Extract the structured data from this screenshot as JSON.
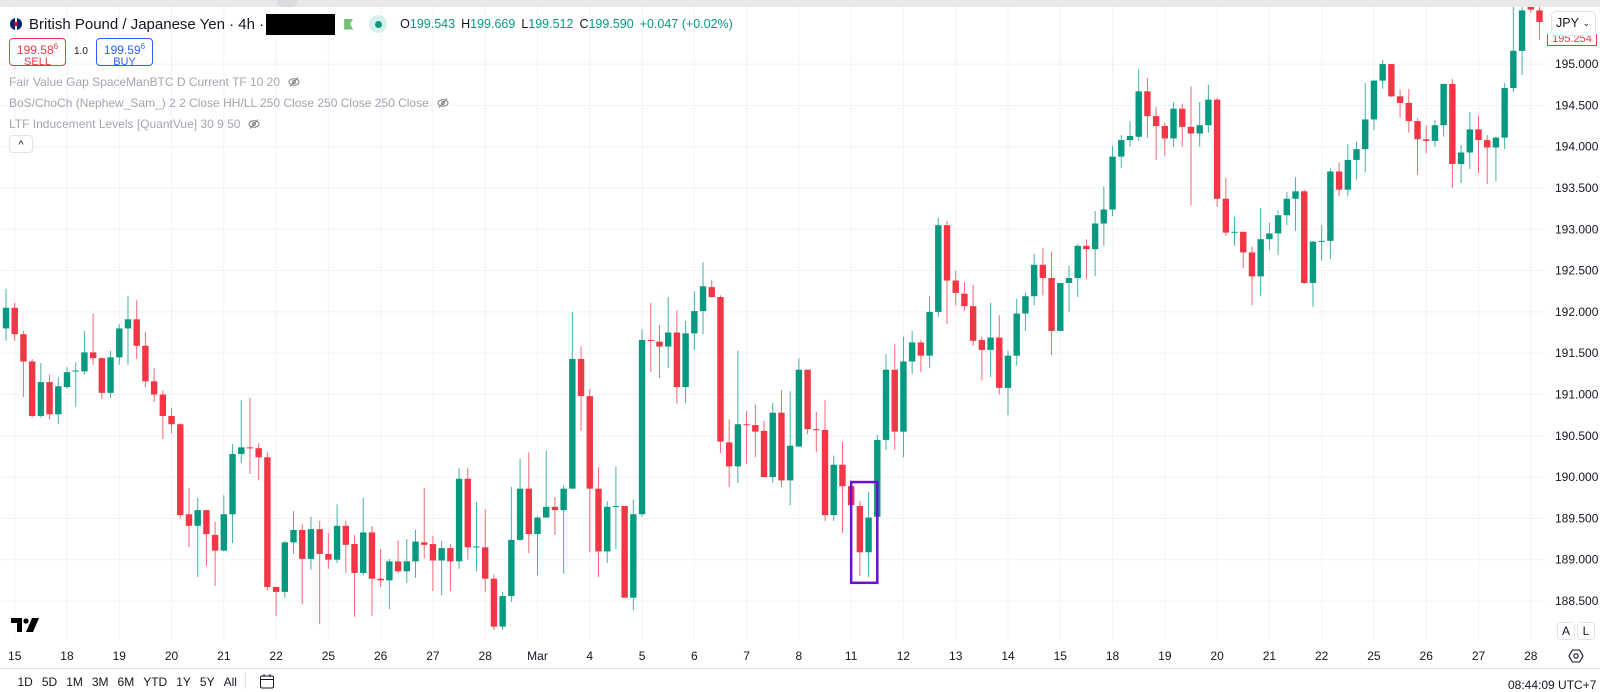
{
  "header": {
    "symbol_title": "British Pound / Japanese Yen · 4h ·",
    "ohlc": [
      {
        "label": "O",
        "value": "199.543"
      },
      {
        "label": "H",
        "value": "199.669"
      },
      {
        "label": "L",
        "value": "199.512"
      },
      {
        "label": "C",
        "value": "199.590"
      }
    ],
    "change": "+0.047 (+0.02%)",
    "sell": {
      "price": "199.58",
      "price_sup": "6",
      "label": "SELL"
    },
    "buy": {
      "price": "199.59",
      "price_sup": "6",
      "label": "BUY"
    },
    "quantity": "1.0"
  },
  "indicators": [
    {
      "label": "Fair Value Gap SpaceManBTC D Current TF 10 20",
      "icon": "eye-off-icon"
    },
    {
      "label": "BoS/ChoCh (Nephew_Sam_) 2 2 Close HH/LL 250 Close 250 Close 250 Close",
      "icon": "eye-off-icon"
    },
    {
      "label": "LTF Inducement Levels [QuantVue] 30 9 50",
      "icon": "eye-off-icon"
    }
  ],
  "collapse_label": "^",
  "currency_button": "JPY",
  "last_price_label": "195.254",
  "bottom_toolbar": {
    "ranges": [
      "1D",
      "5D",
      "1M",
      "3M",
      "6M",
      "YTD",
      "1Y",
      "5Y",
      "All"
    ],
    "clock": "08:44:09 UTC+7",
    "auto_label": "A",
    "log_label": "L"
  },
  "colors": {
    "up": "#089981",
    "down": "#f23645",
    "grid": "#f0f3fa",
    "highlight_box": "#6a0dd6",
    "buy": "#2962ff"
  },
  "chart_data": {
    "type": "candlestick",
    "timeframe": "4h",
    "ylim": [
      188.2,
      195.7
    ],
    "grid": true,
    "y_ticks": [
      "195.000",
      "194.500",
      "194.000",
      "193.500",
      "193.000",
      "192.500",
      "192.000",
      "191.500",
      "191.000",
      "190.500",
      "190.000",
      "189.500",
      "189.000",
      "188.500"
    ],
    "x_ticks": [
      "15",
      "18",
      "19",
      "20",
      "21",
      "22",
      "25",
      "26",
      "27",
      "28",
      "Mar",
      "4",
      "5",
      "6",
      "7",
      "8",
      "11",
      "12",
      "13",
      "14",
      "15",
      "18",
      "19",
      "20",
      "21",
      "22",
      "25",
      "26",
      "27",
      "28"
    ],
    "candle_fields": [
      "open",
      "high",
      "low",
      "close"
    ],
    "candles": [
      [
        191.8,
        192.28,
        191.65,
        192.05
      ],
      [
        192.05,
        192.11,
        191.65,
        191.73
      ],
      [
        191.73,
        191.77,
        190.97,
        191.4
      ],
      [
        191.4,
        191.43,
        190.72,
        190.74
      ],
      [
        190.74,
        191.38,
        190.72,
        191.15
      ],
      [
        191.15,
        191.24,
        190.7,
        190.76
      ],
      [
        190.76,
        191.21,
        190.64,
        191.1
      ],
      [
        191.09,
        191.33,
        191.07,
        191.27
      ],
      [
        191.28,
        191.39,
        190.85,
        191.29
      ],
      [
        191.28,
        191.77,
        191.24,
        191.51
      ],
      [
        191.51,
        191.98,
        191.36,
        191.44
      ],
      [
        191.44,
        191.45,
        190.95,
        191.02
      ],
      [
        191.02,
        191.53,
        190.96,
        191.45
      ],
      [
        191.45,
        191.85,
        191.36,
        191.8
      ],
      [
        191.8,
        192.19,
        191.36,
        191.91
      ],
      [
        191.91,
        192.14,
        191.43,
        191.59
      ],
      [
        191.59,
        191.76,
        191.09,
        191.16
      ],
      [
        191.16,
        191.32,
        190.91,
        191.0
      ],
      [
        191.0,
        191.05,
        190.46,
        190.74
      ],
      [
        190.74,
        190.84,
        190.53,
        190.64
      ],
      [
        190.64,
        190.65,
        189.5,
        189.54
      ],
      [
        189.55,
        189.87,
        189.15,
        189.41
      ],
      [
        189.41,
        189.75,
        188.79,
        189.6
      ],
      [
        189.6,
        189.6,
        188.92,
        189.31
      ],
      [
        189.3,
        189.46,
        188.68,
        189.11
      ],
      [
        189.11,
        189.78,
        189.1,
        189.55
      ],
      [
        189.55,
        190.4,
        189.2,
        190.28
      ],
      [
        190.28,
        190.93,
        190.17,
        190.36
      ],
      [
        190.36,
        190.96,
        190.04,
        190.35
      ],
      [
        190.35,
        190.41,
        189.96,
        190.24
      ],
      [
        190.24,
        190.3,
        188.63,
        188.67
      ],
      [
        188.67,
        188.67,
        188.32,
        188.61
      ],
      [
        188.61,
        189.23,
        188.54,
        189.21
      ],
      [
        189.21,
        189.59,
        189.07,
        189.36
      ],
      [
        189.36,
        189.43,
        188.46,
        189.01
      ],
      [
        189.01,
        189.52,
        188.88,
        189.37
      ],
      [
        189.37,
        189.47,
        188.22,
        189.07
      ],
      [
        189.07,
        189.32,
        188.89,
        189.0
      ],
      [
        189.0,
        189.67,
        188.96,
        189.41
      ],
      [
        189.41,
        189.47,
        188.84,
        189.18
      ],
      [
        189.19,
        189.3,
        188.31,
        188.84
      ],
      [
        188.84,
        189.75,
        188.81,
        189.33
      ],
      [
        189.33,
        189.41,
        188.32,
        188.77
      ],
      [
        188.77,
        189.13,
        188.67,
        188.75
      ],
      [
        188.75,
        189.01,
        188.4,
        188.98
      ],
      [
        188.98,
        189.23,
        188.84,
        188.86
      ],
      [
        188.86,
        189.25,
        188.72,
        188.98
      ],
      [
        188.98,
        189.36,
        188.78,
        189.22
      ],
      [
        189.21,
        189.87,
        189.02,
        189.18
      ],
      [
        189.19,
        189.29,
        188.62,
        188.99
      ],
      [
        188.99,
        189.23,
        188.57,
        189.14
      ],
      [
        189.14,
        189.19,
        188.62,
        188.98
      ],
      [
        188.98,
        190.11,
        188.89,
        189.98
      ],
      [
        189.98,
        190.11,
        189.0,
        189.15
      ],
      [
        189.15,
        189.7,
        188.86,
        189.16
      ],
      [
        189.15,
        189.61,
        188.61,
        188.77
      ],
      [
        188.77,
        188.82,
        188.15,
        188.19
      ],
      [
        188.19,
        188.61,
        188.15,
        188.56
      ],
      [
        188.56,
        189.88,
        188.49,
        189.24
      ],
      [
        189.24,
        190.22,
        189.23,
        189.86
      ],
      [
        189.86,
        190.3,
        189.08,
        189.31
      ],
      [
        189.31,
        189.52,
        188.81,
        189.51
      ],
      [
        189.51,
        190.32,
        189.51,
        189.64
      ],
      [
        189.64,
        189.76,
        189.3,
        189.6
      ],
      [
        189.6,
        189.9,
        188.83,
        189.86
      ],
      [
        189.86,
        192.0,
        189.86,
        191.43
      ],
      [
        191.43,
        191.58,
        190.56,
        190.98
      ],
      [
        190.98,
        191.07,
        189.09,
        189.86
      ],
      [
        189.86,
        190.12,
        188.79,
        189.1
      ],
      [
        189.1,
        189.71,
        188.96,
        189.64
      ],
      [
        189.64,
        190.13,
        189.13,
        189.65
      ],
      [
        189.65,
        189.65,
        188.54,
        188.54
      ],
      [
        188.54,
        189.73,
        188.39,
        189.55
      ],
      [
        189.55,
        191.79,
        189.52,
        191.66
      ],
      [
        191.66,
        192.11,
        191.27,
        191.65
      ],
      [
        191.64,
        191.84,
        191.2,
        191.58
      ],
      [
        191.58,
        192.18,
        191.32,
        191.75
      ],
      [
        191.75,
        192.02,
        190.89,
        191.09
      ],
      [
        191.09,
        191.89,
        190.9,
        191.74
      ],
      [
        191.74,
        192.25,
        191.54,
        192.01
      ],
      [
        192.01,
        192.6,
        191.73,
        192.31
      ],
      [
        192.3,
        192.39,
        192.17,
        192.18
      ],
      [
        192.18,
        192.2,
        190.29,
        190.43
      ],
      [
        190.42,
        190.7,
        189.88,
        190.13
      ],
      [
        190.13,
        191.53,
        189.93,
        190.64
      ],
      [
        190.64,
        190.8,
        190.16,
        190.63
      ],
      [
        190.63,
        190.88,
        190.24,
        190.55
      ],
      [
        190.56,
        190.68,
        190.0,
        190.0
      ],
      [
        190.0,
        190.9,
        189.93,
        190.78
      ],
      [
        190.78,
        191.05,
        189.88,
        189.96
      ],
      [
        189.96,
        191.04,
        189.66,
        190.38
      ],
      [
        190.37,
        191.44,
        190.37,
        191.3
      ],
      [
        191.3,
        191.3,
        190.52,
        190.58
      ],
      [
        190.58,
        190.79,
        190.3,
        190.57
      ],
      [
        190.57,
        190.93,
        189.47,
        189.54
      ],
      [
        189.54,
        190.26,
        189.47,
        190.15
      ],
      [
        190.15,
        190.43,
        189.32,
        189.89
      ],
      [
        189.89,
        189.96,
        189.66,
        189.66
      ],
      [
        189.65,
        189.71,
        188.8,
        189.09
      ],
      [
        189.09,
        189.82,
        188.79,
        189.51
      ],
      [
        189.52,
        190.51,
        189.52,
        190.45
      ],
      [
        190.45,
        191.49,
        190.33,
        191.3
      ],
      [
        191.3,
        191.61,
        190.33,
        190.55
      ],
      [
        190.55,
        191.7,
        190.24,
        191.4
      ],
      [
        191.4,
        191.77,
        191.25,
        191.63
      ],
      [
        191.63,
        191.66,
        191.27,
        191.47
      ],
      [
        191.47,
        192.19,
        191.32,
        192.0
      ],
      [
        192.0,
        193.14,
        191.94,
        193.05
      ],
      [
        193.05,
        193.1,
        191.85,
        192.38
      ],
      [
        192.38,
        192.5,
        192.08,
        192.23
      ],
      [
        192.22,
        192.36,
        192.01,
        192.07
      ],
      [
        192.07,
        192.33,
        191.59,
        191.65
      ],
      [
        191.66,
        191.7,
        191.17,
        191.54
      ],
      [
        191.54,
        192.11,
        191.21,
        191.69
      ],
      [
        191.69,
        191.96,
        191.0,
        191.08
      ],
      [
        191.08,
        191.53,
        190.75,
        191.47
      ],
      [
        191.47,
        192.16,
        191.35,
        191.98
      ],
      [
        191.98,
        192.23,
        191.77,
        192.19
      ],
      [
        192.19,
        192.7,
        192.08,
        192.57
      ],
      [
        192.57,
        192.77,
        192.2,
        192.41
      ],
      [
        192.41,
        192.73,
        191.48,
        191.77
      ],
      [
        191.77,
        192.35,
        191.77,
        192.35
      ],
      [
        192.35,
        192.56,
        192.0,
        192.41
      ],
      [
        192.41,
        192.82,
        192.18,
        192.8
      ],
      [
        192.8,
        192.88,
        192.39,
        192.76
      ],
      [
        192.76,
        193.22,
        192.43,
        193.07
      ],
      [
        193.07,
        193.52,
        192.8,
        193.24
      ],
      [
        193.24,
        194.01,
        193.16,
        193.88
      ],
      [
        193.88,
        194.14,
        193.74,
        194.08
      ],
      [
        194.08,
        194.31,
        194.0,
        194.13
      ],
      [
        194.12,
        194.94,
        194.07,
        194.67
      ],
      [
        194.67,
        194.83,
        194.11,
        194.37
      ],
      [
        194.37,
        194.48,
        193.84,
        194.25
      ],
      [
        194.25,
        194.29,
        193.89,
        194.1
      ],
      [
        194.1,
        194.54,
        194.0,
        194.46
      ],
      [
        194.46,
        194.52,
        194.0,
        194.24
      ],
      [
        194.24,
        194.73,
        193.29,
        194.16
      ],
      [
        194.16,
        194.54,
        194.0,
        194.26
      ],
      [
        194.26,
        194.75,
        194.17,
        194.57
      ],
      [
        194.57,
        194.59,
        193.27,
        193.37
      ],
      [
        193.37,
        193.62,
        192.92,
        192.96
      ],
      [
        192.96,
        193.15,
        192.8,
        192.97
      ],
      [
        192.97,
        192.97,
        192.53,
        192.72
      ],
      [
        192.72,
        192.79,
        192.08,
        192.43
      ],
      [
        192.43,
        193.26,
        192.19,
        192.88
      ],
      [
        192.88,
        193.08,
        192.75,
        192.95
      ],
      [
        192.95,
        193.23,
        192.69,
        193.17
      ],
      [
        193.17,
        193.45,
        193.05,
        193.37
      ],
      [
        193.37,
        193.63,
        192.98,
        193.46
      ],
      [
        193.46,
        193.48,
        192.34,
        192.35
      ],
      [
        192.35,
        192.86,
        192.06,
        192.85
      ],
      [
        192.85,
        193.05,
        192.62,
        192.86
      ],
      [
        192.86,
        193.74,
        192.64,
        193.7
      ],
      [
        193.7,
        193.81,
        193.4,
        193.48
      ],
      [
        193.48,
        194.03,
        193.4,
        193.84
      ],
      [
        193.84,
        194.06,
        193.6,
        193.97
      ],
      [
        193.97,
        194.77,
        193.69,
        194.33
      ],
      [
        194.33,
        194.81,
        194.2,
        194.8
      ],
      [
        194.8,
        195.05,
        194.7,
        195.0
      ],
      [
        195.0,
        195.0,
        194.6,
        194.61
      ],
      [
        194.61,
        194.69,
        194.35,
        194.53
      ],
      [
        194.53,
        194.7,
        194.17,
        194.31
      ],
      [
        194.31,
        194.34,
        193.66,
        194.09
      ],
      [
        194.09,
        194.26,
        193.92,
        194.07
      ],
      [
        194.07,
        194.32,
        194.0,
        194.26
      ],
      [
        194.26,
        194.76,
        194.12,
        194.76
      ],
      [
        194.76,
        194.82,
        193.5,
        193.79
      ],
      [
        193.79,
        194.02,
        193.56,
        193.93
      ],
      [
        193.93,
        194.42,
        193.73,
        194.21
      ],
      [
        194.21,
        194.38,
        193.68,
        194.08
      ],
      [
        194.08,
        194.14,
        193.55,
        193.99
      ],
      [
        193.99,
        194.12,
        193.58,
        194.11
      ],
      [
        194.11,
        194.77,
        193.97,
        194.71
      ],
      [
        194.71,
        195.75,
        194.66,
        195.16
      ],
      [
        195.16,
        195.75,
        194.87,
        195.65
      ],
      [
        195.9,
        196.0,
        195.62,
        195.66
      ],
      [
        195.65,
        195.7,
        195.29,
        195.51
      ]
    ],
    "annotations": [
      {
        "type": "rectangle",
        "start_bar": 98,
        "end_bar": 101,
        "price_top": 189.94,
        "price_bottom": 188.72
      }
    ]
  }
}
